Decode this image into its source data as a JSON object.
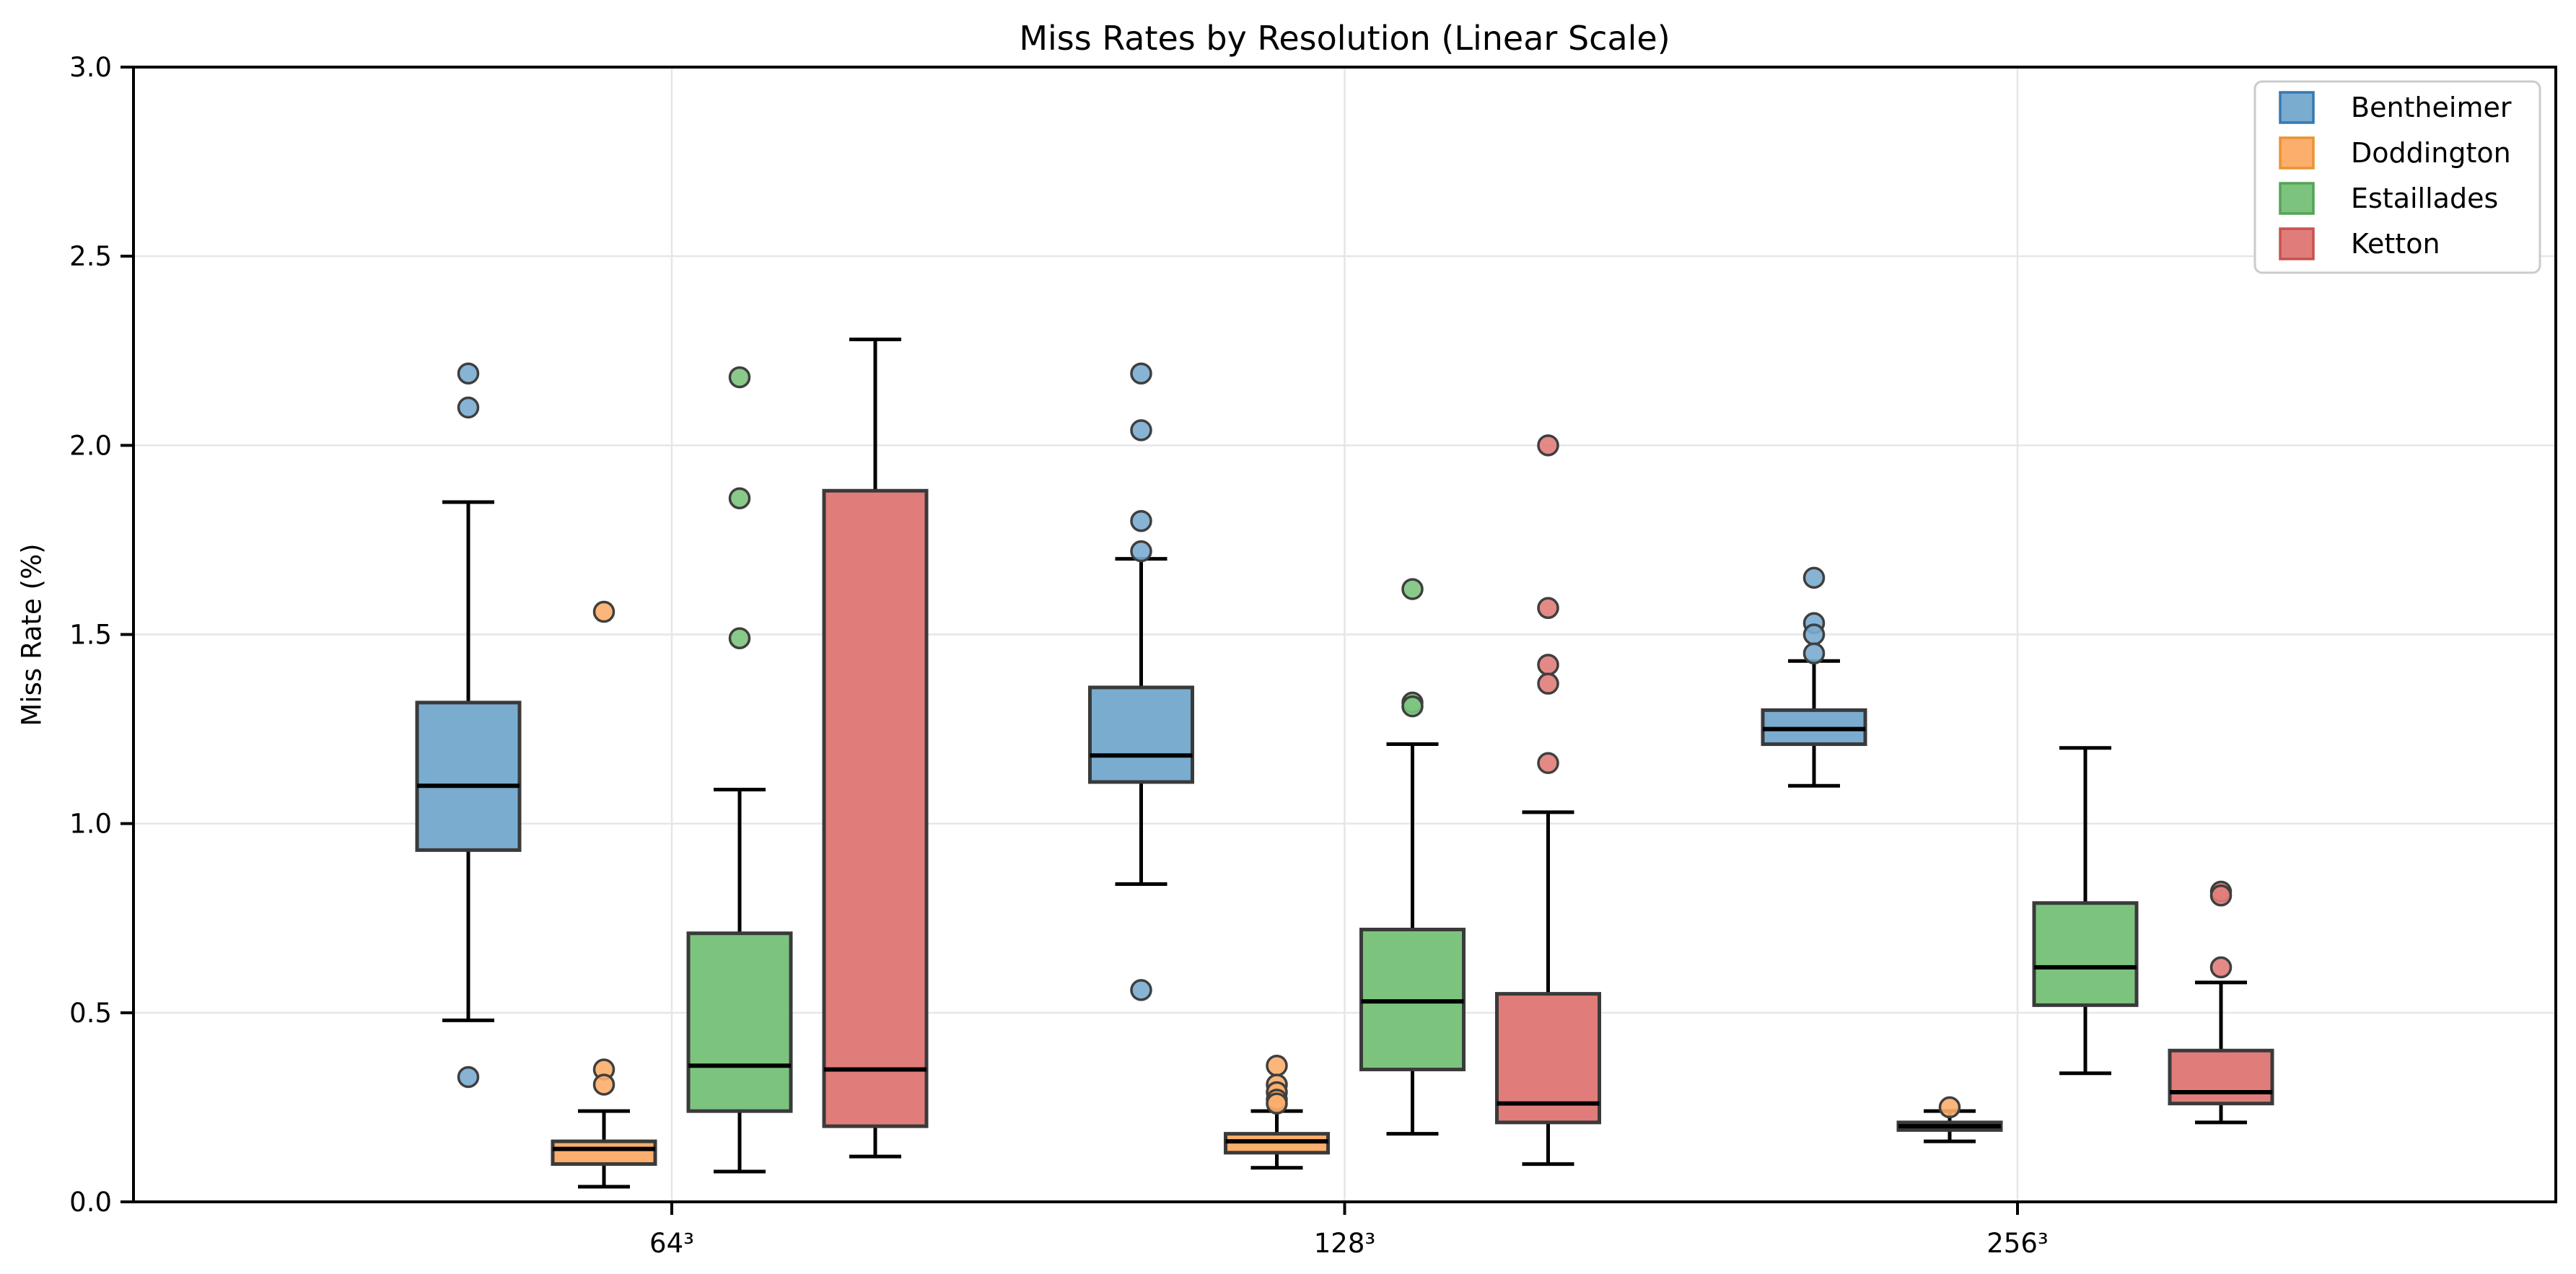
{
  "title": "Miss Rates by Resolution (Linear Scale)",
  "axes": {
    "ylabel": "Miss Rate (%)",
    "y_tick_values": [
      0.0,
      0.5,
      1.0,
      1.5,
      2.0,
      2.5,
      3.0
    ],
    "x_tick_labels": [
      "64³",
      "128³",
      "256³"
    ]
  },
  "colors": {
    "grid": "#e6e6e6",
    "spine": "#000000",
    "box_edge": "#3a3a3a",
    "whisker": "#000000",
    "median": "#000000",
    "flier_edge": "#3f3f3f",
    "legend_border": "#cbcbcb",
    "legend_bg": "#ffffff"
  },
  "legend": {
    "position": "upper right"
  },
  "chart_data": {
    "type": "boxplot",
    "title": "Miss Rates by Resolution (Linear Scale)",
    "xlabel": "",
    "ylabel": "Miss Rate (%)",
    "ylim": [
      0.0,
      3.0
    ],
    "grid": true,
    "legend_position": "upper right",
    "categories": [
      "64³",
      "128³",
      "256³"
    ],
    "series": [
      {
        "name": "Bentheimer",
        "fill": "#7aacd0",
        "edge": "#3579b1",
        "boxes": [
          {
            "whislo": 0.48,
            "q1": 0.93,
            "med": 1.1,
            "q3": 1.32,
            "whishi": 1.85,
            "fliers": [
              2.19,
              2.1,
              0.33
            ]
          },
          {
            "whislo": 0.84,
            "q1": 1.11,
            "med": 1.18,
            "q3": 1.36,
            "whishi": 1.7,
            "fliers": [
              2.19,
              2.04,
              1.8,
              1.72,
              0.56
            ]
          },
          {
            "whislo": 1.1,
            "q1": 1.21,
            "med": 1.25,
            "q3": 1.3,
            "whishi": 1.43,
            "fliers": [
              1.65,
              1.53,
              1.5,
              1.45
            ]
          }
        ]
      },
      {
        "name": "Doddington",
        "fill": "#fcae6c",
        "edge": "#ea9333",
        "boxes": [
          {
            "whislo": 0.04,
            "q1": 0.1,
            "med": 0.14,
            "q3": 0.16,
            "whishi": 0.24,
            "fliers": [
              1.56,
              0.35,
              0.31
            ]
          },
          {
            "whislo": 0.09,
            "q1": 0.13,
            "med": 0.16,
            "q3": 0.18,
            "whishi": 0.24,
            "fliers": [
              0.36,
              0.31,
              0.29,
              0.27,
              0.26
            ]
          },
          {
            "whislo": 0.16,
            "q1": 0.19,
            "med": 0.2,
            "q3": 0.21,
            "whishi": 0.24,
            "fliers": [
              0.25
            ]
          }
        ]
      },
      {
        "name": "Estaillades",
        "fill": "#7cc47e",
        "edge": "#55a357",
        "boxes": [
          {
            "whislo": 0.08,
            "q1": 0.24,
            "med": 0.36,
            "q3": 0.71,
            "whishi": 1.09,
            "fliers": [
              2.18,
              1.86,
              1.49
            ]
          },
          {
            "whislo": 0.18,
            "q1": 0.35,
            "med": 0.53,
            "q3": 0.72,
            "whishi": 1.21,
            "fliers": [
              1.62,
              1.32,
              1.31
            ]
          },
          {
            "whislo": 0.34,
            "q1": 0.52,
            "med": 0.62,
            "q3": 0.79,
            "whishi": 1.2,
            "fliers": []
          }
        ]
      },
      {
        "name": "Ketton",
        "fill": "#e07d7a",
        "edge": "#c85250",
        "boxes": [
          {
            "whislo": 0.12,
            "q1": 0.2,
            "med": 0.35,
            "q3": 1.88,
            "whishi": 2.28,
            "fliers": []
          },
          {
            "whislo": 0.1,
            "q1": 0.21,
            "med": 0.26,
            "q3": 0.55,
            "whishi": 1.03,
            "fliers": [
              2.0,
              1.57,
              1.42,
              1.37,
              1.16
            ]
          },
          {
            "whislo": 0.21,
            "q1": 0.26,
            "med": 0.29,
            "q3": 0.4,
            "whishi": 0.58,
            "fliers": [
              0.82,
              0.81,
              0.62
            ]
          }
        ]
      }
    ]
  }
}
